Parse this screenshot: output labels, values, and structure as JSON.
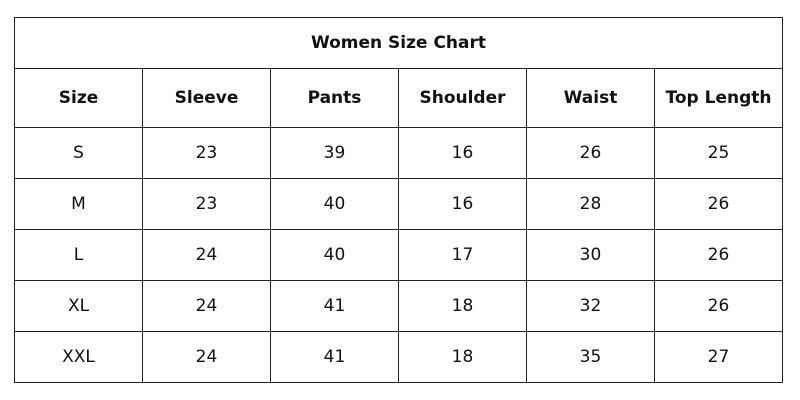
{
  "title": "Women Size Chart",
  "headers": [
    "Size",
    "Sleeve",
    "Pants",
    "Shoulder",
    "Waist",
    "Top Length"
  ],
  "rows": [
    [
      "S",
      "23",
      "39",
      "16",
      "26",
      "25"
    ],
    [
      "M",
      "23",
      "40",
      "16",
      "28",
      "26"
    ],
    [
      "L",
      "24",
      "40",
      "17",
      "30",
      "26"
    ],
    [
      "XL",
      "24",
      "41",
      "18",
      "32",
      "26"
    ],
    [
      "XXL",
      "24",
      "41",
      "18",
      "35",
      "27"
    ]
  ]
}
